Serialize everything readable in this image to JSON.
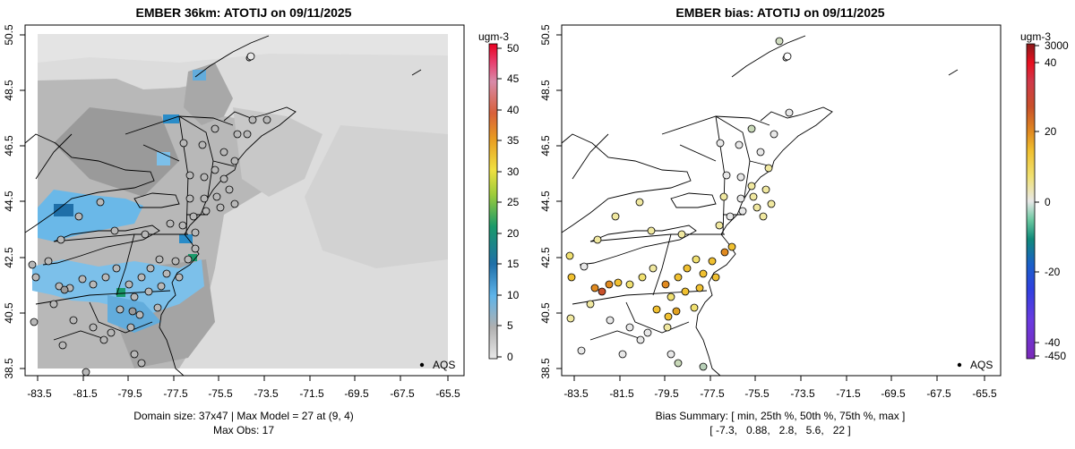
{
  "panels": [
    {
      "title": "EMBER 36km: ATOTIJ on 09/11/2025",
      "caption_line1": "Domain size: 37x47 | Max Model = 27 at (9, 4)",
      "caption_line2": "Max Obs: 17",
      "legend_label": "AQS",
      "colorbar": {
        "unit": "ugm-3",
        "ticks": [
          "0",
          "5",
          "10",
          "15",
          "20",
          "25",
          "30",
          "35",
          "40",
          "45",
          "50"
        ]
      }
    },
    {
      "title": "EMBER bias: ATOTIJ on 09/11/2025",
      "caption_line1": "Bias Summary: [ min, 25th %, 50th %, 75th %, max ]",
      "caption_line2": "[ -7.3,   0.88,   2.8,   5.6,   22 ]",
      "legend_label": "AQS",
      "colorbar": {
        "unit": "ugm-3",
        "ticks": [
          "3000",
          "40",
          "20",
          "0",
          "-20",
          "-40",
          "-450"
        ]
      }
    }
  ],
  "map_axes": {
    "x_ticks": [
      "-83.5",
      "-81.5",
      "-79.5",
      "-77.5",
      "-75.5",
      "-73.5",
      "-71.5",
      "-69.5",
      "-67.5",
      "-65.5"
    ],
    "y_ticks": [
      "38.5",
      "40.5",
      "42.5",
      "44.5",
      "46.5",
      "48.5",
      "50.5"
    ]
  }
}
